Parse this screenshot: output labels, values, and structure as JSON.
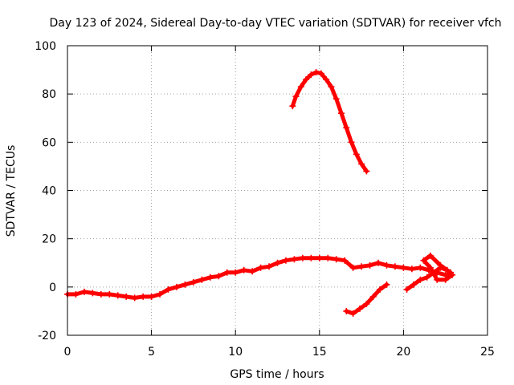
{
  "chart_data": {
    "type": "scatter",
    "title": "Day 123 of 2024, Sidereal Day-to-day VTEC variation (SDTVAR) for receiver vfch",
    "xlabel": "GPS time / hours",
    "ylabel": "SDTVAR / TECUs",
    "xlim": [
      0,
      25
    ],
    "ylim": [
      -20,
      100
    ],
    "xticks": [
      0,
      5,
      10,
      15,
      20,
      25
    ],
    "yticks": [
      -20,
      0,
      20,
      40,
      60,
      80,
      100
    ],
    "xtick_labels": [
      "0",
      "5",
      "10",
      "15",
      "20",
      "25"
    ],
    "ytick_labels": [
      "-20",
      "0",
      "20",
      "40",
      "60",
      "80",
      "100"
    ],
    "grid": true,
    "legend": "none",
    "marker": "+",
    "color": "#ff0000",
    "series": [
      {
        "name": "main-band",
        "x": [
          0,
          0.5,
          1,
          1.5,
          2,
          2.5,
          3,
          3.5,
          4,
          4.5,
          5,
          5.5,
          6,
          6.5,
          7,
          7.5,
          8,
          8.5,
          9,
          9.5,
          10,
          10.5,
          11,
          11.5,
          12,
          12.5,
          13,
          13.5,
          14,
          14.5,
          15,
          15.5,
          16,
          16.5,
          17,
          17.5,
          18,
          18.5,
          19,
          19.5,
          20,
          20.5,
          21,
          21.5,
          22,
          22.5,
          22.8
        ],
        "y": [
          -3,
          -3,
          -2,
          -2.5,
          -3,
          -3,
          -3.5,
          -4,
          -4.5,
          -4,
          -4,
          -3,
          -1,
          0,
          1,
          2,
          3,
          4,
          4.5,
          6,
          6,
          7,
          6.5,
          8,
          8.5,
          10,
          11,
          11.5,
          12,
          12,
          12,
          12,
          11.5,
          11,
          8,
          8.5,
          9,
          10,
          9,
          8.5,
          8,
          7.5,
          8,
          7,
          6,
          5,
          5
        ]
      },
      {
        "name": "upper-arc",
        "x": [
          13.4,
          13.6,
          13.9,
          14.2,
          14.5,
          14.8,
          15.1,
          15.4,
          15.7,
          16.0,
          16.3,
          16.6,
          16.9,
          17.2,
          17.5,
          17.8
        ],
        "y": [
          75,
          79,
          83,
          86,
          88,
          89,
          88.5,
          86,
          83,
          78,
          72,
          66,
          60,
          55,
          51,
          48
        ]
      },
      {
        "name": "lower-branch",
        "x": [
          16.6,
          17.0,
          17.4,
          17.8,
          18.2,
          18.6,
          19.0
        ],
        "y": [
          -10,
          -11,
          -9,
          -7,
          -4,
          -1,
          1
        ]
      },
      {
        "name": "right-cluster",
        "x": [
          20.2,
          20.6,
          21.0,
          21.4,
          21.8,
          22.2,
          22.6,
          22.9,
          22.5,
          22.0,
          21.6,
          21.2,
          21.6,
          22.2,
          22.8
        ],
        "y": [
          -1,
          1,
          3,
          4,
          6,
          8,
          7,
          5,
          3,
          3,
          8,
          11,
          13,
          9,
          6
        ]
      }
    ]
  }
}
